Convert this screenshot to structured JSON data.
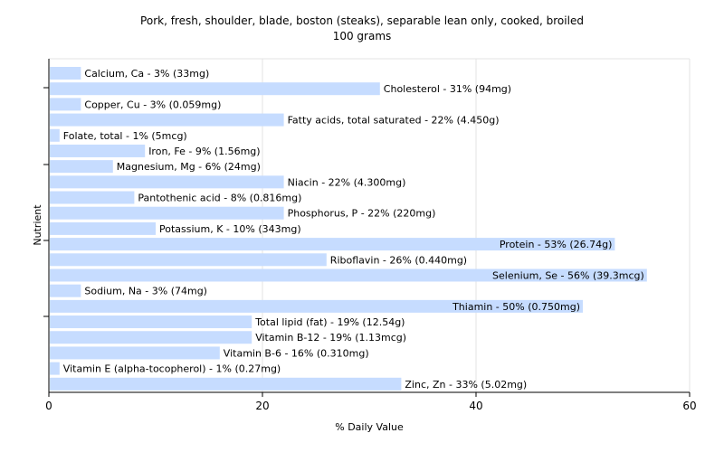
{
  "chart_data": {
    "type": "bar",
    "orientation": "horizontal",
    "title": "Pork, fresh, shoulder, blade, boston (steaks), separable lean only, cooked, broiled",
    "subtitle": "100 grams",
    "xlabel": "% Daily Value",
    "ylabel": "Nutrient",
    "xlim": [
      0,
      60
    ],
    "xticks": [
      0,
      20,
      40,
      60
    ],
    "grid": true,
    "bar_color": "#c6dcff",
    "bars": [
      {
        "name": "Calcium, Ca",
        "value": 3,
        "label": "Calcium, Ca - 3% (33mg)"
      },
      {
        "name": "Cholesterol",
        "value": 31,
        "label": "Cholesterol - 31% (94mg)"
      },
      {
        "name": "Copper, Cu",
        "value": 3,
        "label": "Copper, Cu - 3% (0.059mg)"
      },
      {
        "name": "Fatty acids, total saturated",
        "value": 22,
        "label": "Fatty acids, total saturated - 22% (4.450g)"
      },
      {
        "name": "Folate, total",
        "value": 1,
        "label": "Folate, total - 1% (5mcg)"
      },
      {
        "name": "Iron, Fe",
        "value": 9,
        "label": "Iron, Fe - 9% (1.56mg)"
      },
      {
        "name": "Magnesium, Mg",
        "value": 6,
        "label": "Magnesium, Mg - 6% (24mg)"
      },
      {
        "name": "Niacin",
        "value": 22,
        "label": "Niacin - 22% (4.300mg)"
      },
      {
        "name": "Pantothenic acid",
        "value": 8,
        "label": "Pantothenic acid - 8% (0.816mg)"
      },
      {
        "name": "Phosphorus, P",
        "value": 22,
        "label": "Phosphorus, P - 22% (220mg)"
      },
      {
        "name": "Potassium, K",
        "value": 10,
        "label": "Potassium, K - 10% (343mg)"
      },
      {
        "name": "Protein",
        "value": 53,
        "label": "Protein - 53% (26.74g)"
      },
      {
        "name": "Riboflavin",
        "value": 26,
        "label": "Riboflavin - 26% (0.440mg)"
      },
      {
        "name": "Selenium, Se",
        "value": 56,
        "label": "Selenium, Se - 56% (39.3mcg)"
      },
      {
        "name": "Sodium, Na",
        "value": 3,
        "label": "Sodium, Na - 3% (74mg)"
      },
      {
        "name": "Thiamin",
        "value": 50,
        "label": "Thiamin - 50% (0.750mg)"
      },
      {
        "name": "Total lipid (fat)",
        "value": 19,
        "label": "Total lipid (fat) - 19% (12.54g)"
      },
      {
        "name": "Vitamin B-12",
        "value": 19,
        "label": "Vitamin B-12 - 19% (1.13mcg)"
      },
      {
        "name": "Vitamin B-6",
        "value": 16,
        "label": "Vitamin B-6 - 16% (0.310mg)"
      },
      {
        "name": "Vitamin E (alpha-tocopherol)",
        "value": 1,
        "label": "Vitamin E (alpha-tocopherol) - 1% (0.27mg)"
      },
      {
        "name": "Zinc, Zn",
        "value": 33,
        "label": "Zinc, Zn - 33% (5.02mg)"
      }
    ]
  }
}
